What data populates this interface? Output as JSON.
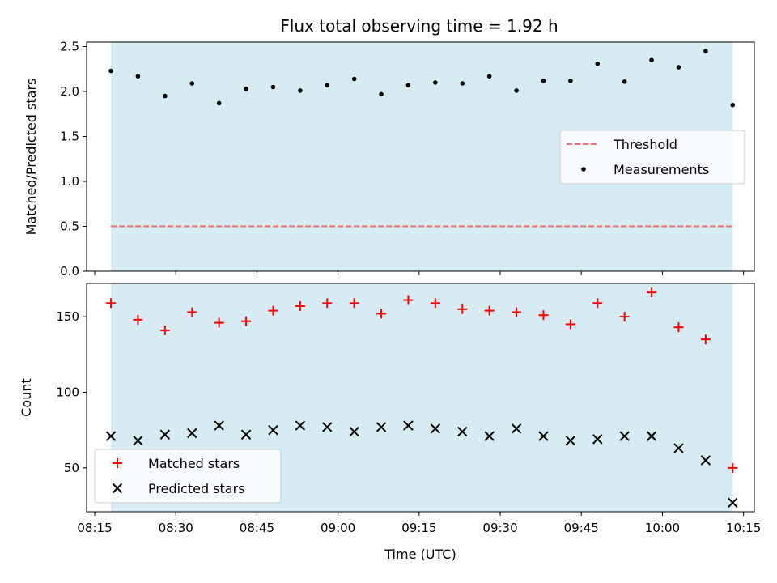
{
  "title": "Flux total observing time = 1.92 h",
  "colors": {
    "shade": "#add8e6",
    "threshold": "#f07070",
    "measurement": "#000000",
    "matched": "#ff0000",
    "predicted": "#000000"
  },
  "chart_data": [
    {
      "type": "scatter",
      "ylabel": "Matched/Predicted stars",
      "xlabel": "",
      "ylim": [
        0,
        2.55
      ],
      "yticks": [
        "0.0",
        "0.5",
        "1.0",
        "1.5",
        "2.0",
        "2.5"
      ],
      "xlim": [
        "08:13:30",
        "10:17:00"
      ],
      "shaded_span": [
        "08:18:00",
        "10:13:00"
      ],
      "legend": {
        "placement": "center-right",
        "entries": [
          "Threshold",
          "Measurements"
        ]
      },
      "threshold": {
        "name": "Threshold",
        "y": 0.5,
        "x": [
          "08:18:00",
          "10:13:00"
        ],
        "style": "dashed"
      },
      "series": [
        {
          "name": "Measurements",
          "x": [
            "08:18:00",
            "08:23:00",
            "08:28:00",
            "08:33:00",
            "08:38:00",
            "08:43:00",
            "08:48:00",
            "08:53:00",
            "08:58:00",
            "09:03:00",
            "09:08:00",
            "09:13:00",
            "09:18:00",
            "09:23:00",
            "09:28:00",
            "09:33:00",
            "09:38:00",
            "09:43:00",
            "09:48:00",
            "09:53:00",
            "09:58:00",
            "10:03:00",
            "10:08:00",
            "10:13:00"
          ],
          "y": [
            2.23,
            2.17,
            1.95,
            2.09,
            1.87,
            2.03,
            2.05,
            2.01,
            2.07,
            2.14,
            1.97,
            2.07,
            2.1,
            2.09,
            2.17,
            2.01,
            2.12,
            2.12,
            2.31,
            2.11,
            2.35,
            2.27,
            2.45,
            1.85
          ]
        }
      ]
    },
    {
      "type": "scatter",
      "ylabel": "Count",
      "xlabel": "Time (UTC)",
      "ylim": [
        21,
        172
      ],
      "yticks": [
        "50",
        "100",
        "150"
      ],
      "ytick_values": [
        50,
        100,
        150
      ],
      "xlim": [
        "08:13:30",
        "10:17:00"
      ],
      "xtick_labels": [
        "08:15",
        "08:30",
        "08:45",
        "09:00",
        "09:15",
        "09:30",
        "09:45",
        "10:00",
        "10:15"
      ],
      "xtick_values": [
        "08:15:00",
        "08:30:00",
        "08:45:00",
        "09:00:00",
        "09:15:00",
        "09:30:00",
        "09:45:00",
        "10:00:00",
        "10:15:00"
      ],
      "shaded_span": [
        "08:18:00",
        "10:13:00"
      ],
      "legend": {
        "placement": "bottom-left",
        "entries": [
          "Matched stars",
          "Predicted stars"
        ]
      },
      "series": [
        {
          "name": "Matched stars",
          "marker": "plus",
          "x": [
            "08:18:00",
            "08:23:00",
            "08:28:00",
            "08:33:00",
            "08:38:00",
            "08:43:00",
            "08:48:00",
            "08:53:00",
            "08:58:00",
            "09:03:00",
            "09:08:00",
            "09:13:00",
            "09:18:00",
            "09:23:00",
            "09:28:00",
            "09:33:00",
            "09:38:00",
            "09:43:00",
            "09:48:00",
            "09:53:00",
            "09:58:00",
            "10:03:00",
            "10:08:00",
            "10:13:00"
          ],
          "y": [
            159,
            148,
            141,
            153,
            146,
            147,
            154,
            157,
            159,
            159,
            152,
            161,
            159,
            155,
            154,
            153,
            151,
            145,
            159,
            150,
            166,
            143,
            135,
            50
          ]
        },
        {
          "name": "Predicted stars",
          "marker": "x",
          "x": [
            "08:18:00",
            "08:23:00",
            "08:28:00",
            "08:33:00",
            "08:38:00",
            "08:43:00",
            "08:48:00",
            "08:53:00",
            "08:58:00",
            "09:03:00",
            "09:08:00",
            "09:13:00",
            "09:18:00",
            "09:23:00",
            "09:28:00",
            "09:33:00",
            "09:38:00",
            "09:43:00",
            "09:48:00",
            "09:53:00",
            "09:58:00",
            "10:03:00",
            "10:08:00",
            "10:13:00"
          ],
          "y": [
            71,
            68,
            72,
            73,
            78,
            72,
            75,
            78,
            77,
            74,
            77,
            78,
            76,
            74,
            71,
            76,
            71,
            68,
            69,
            71,
            71,
            63,
            55,
            27
          ]
        }
      ]
    }
  ]
}
